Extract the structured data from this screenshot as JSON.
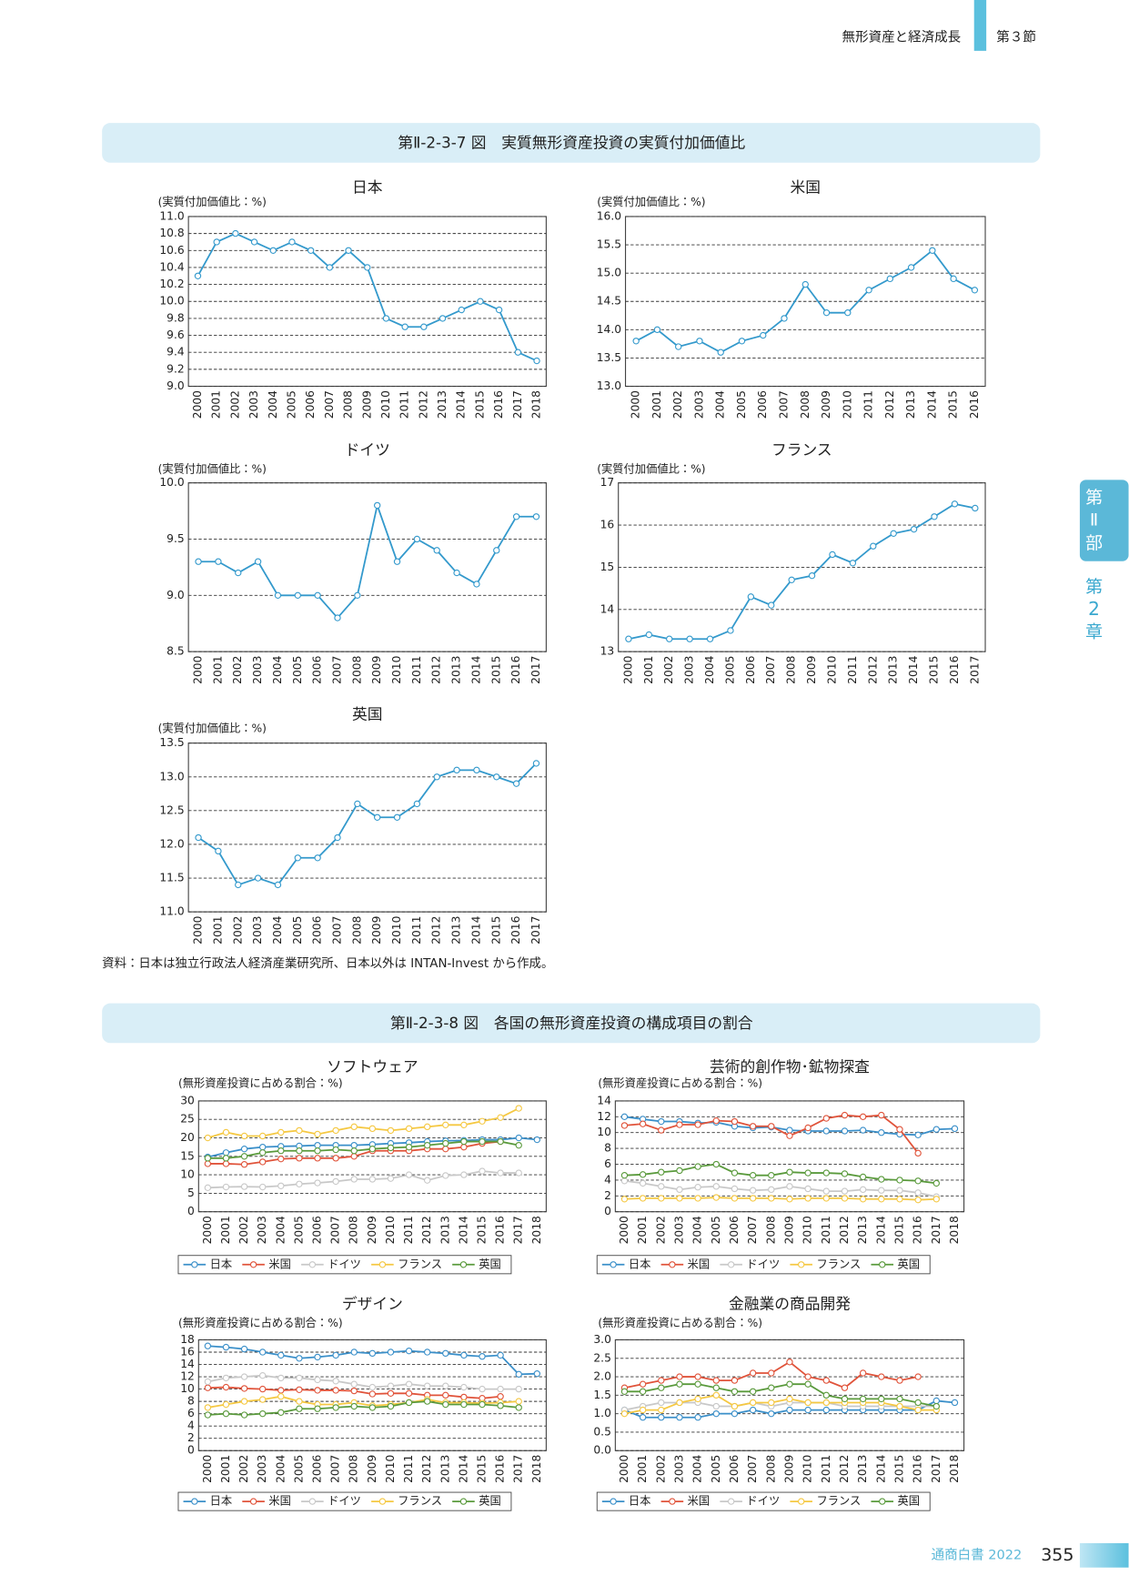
{
  "header": {
    "section_title": "無形資産と経済成長",
    "section": "第３節"
  },
  "sidebar": {
    "part": [
      "第",
      "Ⅱ",
      "部"
    ],
    "chapter": [
      "第",
      "2",
      "章"
    ]
  },
  "figures": [
    {
      "title": "第Ⅱ-2-3-7 図　実質無形資産投資の実質付加価値比",
      "note": "資料：日本は独立行政法人経済産業研究所、日本以外は INTAN-Invest から作成。"
    },
    {
      "title": "第Ⅱ-2-3-8 図　各国の無形資産投資の構成項目の割合"
    }
  ],
  "chart_data": [
    {
      "type": "line",
      "title": "日本",
      "y_label": "(実質付加価値比：%)",
      "color": "#3399cc",
      "grid": true,
      "categories": [
        "2000",
        "2001",
        "2002",
        "2003",
        "2004",
        "2005",
        "2006",
        "2007",
        "2008",
        "2009",
        "2010",
        "2011",
        "2012",
        "2013",
        "2014",
        "2015",
        "2016",
        "2017",
        "2018"
      ],
      "values": [
        10.3,
        10.7,
        10.8,
        10.7,
        10.6,
        10.7,
        10.6,
        10.4,
        10.6,
        10.4,
        9.8,
        9.7,
        9.7,
        9.8,
        9.9,
        10.0,
        9.9,
        9.4,
        9.3
      ],
      "ylim": [
        9,
        11
      ],
      "yticks": [
        {
          "value": 9,
          "label": "9.0"
        },
        9.2,
        9.4,
        9.6,
        9.8,
        {
          "value": 10,
          "label": "10.0"
        },
        10.2,
        10.4,
        10.6,
        10.8,
        {
          "value": 11,
          "label": "11.0"
        }
      ]
    },
    {
      "type": "line",
      "title": "米国",
      "y_label": "(実質付加価値比：%)",
      "color": "#3399cc",
      "grid": true,
      "categories": [
        "2000",
        "2001",
        "2002",
        "2003",
        "2004",
        "2005",
        "2006",
        "2007",
        "2008",
        "2009",
        "2010",
        "2011",
        "2012",
        "2013",
        "2014",
        "2015",
        "2016"
      ],
      "values": [
        13.8,
        14.0,
        13.7,
        13.8,
        13.6,
        13.8,
        13.9,
        14.2,
        14.8,
        14.3,
        14.3,
        14.7,
        14.9,
        15.1,
        15.4,
        14.9,
        14.7
      ],
      "ylim": [
        13,
        16
      ],
      "yticks": [
        {
          "value": 13,
          "label": "13.0"
        },
        13.5,
        {
          "value": 14,
          "label": "14.0"
        },
        14.5,
        {
          "value": 15,
          "label": "15.0"
        },
        15.5,
        {
          "value": 16,
          "label": "16.0"
        }
      ]
    },
    {
      "type": "line",
      "title": "ドイツ",
      "y_label": "(実質付加価値比：%)",
      "color": "#3399cc",
      "grid": true,
      "categories": [
        "2000",
        "2001",
        "2002",
        "2003",
        "2004",
        "2005",
        "2006",
        "2007",
        "2008",
        "2009",
        "2010",
        "2011",
        "2012",
        "2013",
        "2014",
        "2015",
        "2016",
        "2017"
      ],
      "values": [
        9.3,
        9.3,
        9.2,
        9.3,
        9.0,
        9.0,
        9.0,
        8.8,
        9.0,
        9.8,
        9.3,
        9.5,
        9.4,
        9.2,
        9.1,
        9.4,
        9.7,
        9.7
      ],
      "ylim": [
        8.5,
        10
      ],
      "yticks": [
        8.5,
        {
          "value": 9,
          "label": "9.0"
        },
        9.5,
        {
          "value": 10,
          "label": "10.0"
        }
      ]
    },
    {
      "type": "line",
      "title": "フランス",
      "y_label": "(実質付加価値比：%)",
      "color": "#3399cc",
      "grid": true,
      "categories": [
        "2000",
        "2001",
        "2002",
        "2003",
        "2004",
        "2005",
        "2006",
        "2007",
        "2008",
        "2009",
        "2010",
        "2011",
        "2012",
        "2013",
        "2014",
        "2015",
        "2016",
        "2017"
      ],
      "values": [
        13.3,
        13.4,
        13.3,
        13.3,
        13.3,
        13.5,
        14.3,
        14.1,
        14.7,
        14.8,
        15.3,
        15.1,
        15.5,
        15.8,
        15.9,
        16.2,
        16.5,
        16.4
      ],
      "ylim": [
        13,
        17
      ],
      "yticks": [
        13,
        14,
        15,
        16,
        17
      ]
    },
    {
      "type": "line",
      "title": "英国",
      "y_label": "(実質付加価値比：%)",
      "color": "#3399cc",
      "grid": true,
      "categories": [
        "2000",
        "2001",
        "2002",
        "2003",
        "2004",
        "2005",
        "2006",
        "2007",
        "2008",
        "2009",
        "2010",
        "2011",
        "2012",
        "2013",
        "2014",
        "2015",
        "2016",
        "2017"
      ],
      "values": [
        12.1,
        11.9,
        11.4,
        11.5,
        11.4,
        11.8,
        11.8,
        12.1,
        12.6,
        12.4,
        12.4,
        12.6,
        13.0,
        13.1,
        13.1,
        13.0,
        12.9,
        13.2
      ],
      "ylim": [
        11,
        13.5
      ],
      "yticks": [
        {
          "value": 11,
          "label": "11.0"
        },
        11.5,
        {
          "value": 12,
          "label": "12.0"
        },
        12.5,
        {
          "value": 13,
          "label": "13.0"
        },
        13.5
      ]
    },
    {
      "type": "line",
      "title": "ソフトウェア",
      "y_label": "(無形資産投資に占める割合：%)",
      "grid": true,
      "categories": [
        "2000",
        "2001",
        "2002",
        "2003",
        "2004",
        "2005",
        "2006",
        "2007",
        "2008",
        "2009",
        "2010",
        "2011",
        "2012",
        "2013",
        "2014",
        "2015",
        "2016",
        "2017",
        "2018"
      ],
      "series": [
        {
          "name": "日本",
          "color": "#3a8fc9",
          "values": [
            14.8,
            16,
            17,
            17.5,
            17.7,
            17.8,
            18,
            18,
            18,
            18.2,
            18.5,
            18.7,
            19,
            19.2,
            19.3,
            19.5,
            19.5,
            20,
            19.5
          ]
        },
        {
          "name": "米国",
          "color": "#e0533a",
          "values": [
            13,
            13,
            12.8,
            13.5,
            14.3,
            14.5,
            14.5,
            14.5,
            15,
            16.5,
            16.5,
            16.5,
            17,
            17,
            17.5,
            18.5,
            19,
            null,
            null
          ]
        },
        {
          "name": "ドイツ",
          "color": "#c8c8c8",
          "values": [
            6.5,
            6.7,
            6.8,
            6.7,
            7,
            7.5,
            7.8,
            8.2,
            8.8,
            8.8,
            9,
            10,
            8.5,
            9.8,
            10,
            11,
            10.5,
            10.5,
            null
          ]
        },
        {
          "name": "フランス",
          "color": "#f5c842",
          "values": [
            20,
            21.5,
            20.5,
            20.5,
            21.5,
            22,
            21,
            22,
            23,
            22.5,
            22,
            22.5,
            23,
            23.5,
            23.5,
            24.5,
            25.5,
            28,
            null
          ]
        },
        {
          "name": "英国",
          "color": "#5a9a3c",
          "values": [
            14.5,
            14.5,
            15,
            16,
            16.5,
            16.5,
            16.5,
            16.8,
            16.5,
            17,
            17.3,
            17.5,
            18,
            18.5,
            19,
            19,
            19,
            18,
            null
          ]
        }
      ],
      "ylim": [
        0,
        30
      ],
      "yticks": [
        0,
        5,
        10,
        15,
        20,
        25,
        30
      ]
    },
    {
      "type": "line",
      "title": "芸術的創作物･鉱物探査",
      "y_label": "(無形資産投資に占める割合：%)",
      "grid": true,
      "categories": [
        "2000",
        "2001",
        "2002",
        "2003",
        "2004",
        "2005",
        "2006",
        "2007",
        "2008",
        "2009",
        "2010",
        "2011",
        "2012",
        "2013",
        "2014",
        "2015",
        "2016",
        "2017",
        "2018"
      ],
      "series": [
        {
          "name": "日本",
          "color": "#3a8fc9",
          "values": [
            12,
            11.7,
            11.4,
            11.4,
            11.2,
            11.3,
            10.8,
            10.6,
            10.7,
            10.3,
            10.2,
            10.2,
            10.2,
            10.3,
            10.0,
            9.8,
            9.7,
            10.4,
            10.5
          ]
        },
        {
          "name": "米国",
          "color": "#e0533a",
          "values": [
            10.9,
            11.1,
            10.3,
            11,
            11,
            11.5,
            11.4,
            10.8,
            10.8,
            9.6,
            10.6,
            11.8,
            12.2,
            12,
            12.2,
            10.4,
            7.4,
            null,
            null
          ]
        },
        {
          "name": "ドイツ",
          "color": "#c8c8c8",
          "values": [
            3.9,
            3.6,
            3.2,
            2.8,
            3.1,
            3.2,
            2.9,
            2.7,
            2.8,
            3.2,
            2.9,
            2.6,
            2.6,
            2.8,
            2.7,
            2.7,
            2.4,
            1.9,
            null
          ]
        },
        {
          "name": "フランス",
          "color": "#f5c842",
          "values": [
            1.6,
            1.7,
            1.7,
            1.7,
            1.7,
            1.8,
            1.7,
            1.7,
            1.7,
            1.6,
            1.7,
            1.7,
            1.7,
            1.6,
            1.6,
            1.6,
            1.5,
            1.6,
            null
          ]
        },
        {
          "name": "英国",
          "color": "#5a9a3c",
          "values": [
            4.6,
            4.7,
            5,
            5.2,
            5.7,
            6,
            4.9,
            4.6,
            4.6,
            5,
            4.9,
            4.9,
            4.8,
            4.4,
            4.1,
            4,
            3.9,
            3.6,
            null
          ]
        }
      ],
      "ylim": [
        0,
        14
      ],
      "yticks": [
        0,
        2,
        4,
        6,
        8,
        10,
        12,
        14
      ]
    },
    {
      "type": "line",
      "title": "デザイン",
      "y_label": "(無形資産投資に占める割合：%)",
      "grid": true,
      "categories": [
        "2000",
        "2001",
        "2002",
        "2003",
        "2004",
        "2005",
        "2006",
        "2007",
        "2008",
        "2009",
        "2010",
        "2011",
        "2012",
        "2013",
        "2014",
        "2015",
        "2016",
        "2017",
        "2018"
      ],
      "series": [
        {
          "name": "日本",
          "color": "#3a8fc9",
          "values": [
            17,
            16.8,
            16.5,
            16,
            15.5,
            15,
            15.2,
            15.5,
            16,
            15.8,
            16,
            16.2,
            16,
            15.8,
            15.5,
            15.3,
            15.5,
            12.4,
            12.5
          ]
        },
        {
          "name": "米国",
          "color": "#e0533a",
          "values": [
            10.2,
            10.3,
            10.1,
            10,
            9.8,
            9.9,
            9.8,
            9.8,
            9.7,
            9.2,
            9.3,
            9.3,
            9,
            9,
            8.7,
            8.5,
            8.8,
            null,
            null
          ]
        },
        {
          "name": "ドイツ",
          "color": "#c8c8c8",
          "values": [
            11.2,
            11.8,
            12,
            12.2,
            11.8,
            11.8,
            11.5,
            11.3,
            10.8,
            10.3,
            10.5,
            10.8,
            10.5,
            10.5,
            10.3,
            10,
            10,
            10,
            null
          ]
        },
        {
          "name": "フランス",
          "color": "#f5c842",
          "values": [
            7,
            7.5,
            8,
            8.3,
            8.8,
            8,
            7.5,
            7.5,
            7.8,
            7.3,
            7.5,
            7.8,
            8.3,
            7.8,
            7.8,
            7.7,
            7.8,
            8,
            null
          ]
        },
        {
          "name": "英国",
          "color": "#5a9a3c",
          "values": [
            5.8,
            6,
            5.8,
            6,
            6.2,
            6.8,
            6.8,
            7,
            7.2,
            7,
            7.2,
            7.8,
            8,
            7.5,
            7.5,
            7.5,
            7.3,
            7,
            null
          ]
        }
      ],
      "ylim": [
        0,
        18
      ],
      "yticks": [
        0,
        2,
        4,
        6,
        8,
        10,
        12,
        14,
        16,
        18
      ]
    },
    {
      "type": "line",
      "title": "金融業の商品開発",
      "y_label": "(無形資産投資に占める割合：%)",
      "grid": true,
      "categories": [
        "2000",
        "2001",
        "2002",
        "2003",
        "2004",
        "2005",
        "2006",
        "2007",
        "2008",
        "2009",
        "2010",
        "2011",
        "2012",
        "2013",
        "2014",
        "2015",
        "2016",
        "2017",
        "2018"
      ],
      "series": [
        {
          "name": "日本",
          "color": "#3a8fc9",
          "values": [
            1.1,
            0.9,
            0.9,
            0.9,
            0.9,
            1.0,
            1.0,
            1.1,
            1.0,
            1.1,
            1.1,
            1.1,
            1.1,
            1.1,
            1.1,
            1.1,
            1.1,
            1.35,
            1.3
          ]
        },
        {
          "name": "米国",
          "color": "#e0533a",
          "values": [
            1.7,
            1.8,
            1.9,
            2.0,
            2.0,
            1.9,
            1.9,
            2.1,
            2.1,
            2.4,
            2.0,
            1.9,
            1.7,
            2.1,
            2.0,
            1.9,
            2.0,
            null,
            null
          ]
        },
        {
          "name": "ドイツ",
          "color": "#c8c8c8",
          "values": [
            1.1,
            1.2,
            1.3,
            1.3,
            1.3,
            1.2,
            1.2,
            1.3,
            1.2,
            1.3,
            1.3,
            1.3,
            1.2,
            1.2,
            1.2,
            1.2,
            1.2,
            1.2,
            null
          ]
        },
        {
          "name": "フランス",
          "color": "#f5c842",
          "values": [
            1.0,
            1.1,
            1.1,
            1.3,
            1.4,
            1.5,
            1.2,
            1.3,
            1.3,
            1.4,
            1.3,
            1.3,
            1.3,
            1.3,
            1.3,
            1.2,
            1.1,
            1.1,
            null
          ]
        },
        {
          "name": "英国",
          "color": "#5a9a3c",
          "values": [
            1.6,
            1.6,
            1.7,
            1.8,
            1.8,
            1.7,
            1.6,
            1.6,
            1.7,
            1.8,
            1.8,
            1.5,
            1.4,
            1.4,
            1.4,
            1.4,
            1.3,
            1.2,
            null
          ]
        }
      ],
      "ylim": [
        0,
        3
      ],
      "yticks": [
        {
          "value": 0,
          "label": "0.0"
        },
        0.5,
        {
          "value": 1,
          "label": "1.0"
        },
        1.5,
        {
          "value": 2,
          "label": "2.0"
        },
        2.5,
        {
          "value": 3,
          "label": "3.0"
        }
      ]
    }
  ],
  "footer": {
    "publication": "通商白書 2022",
    "page_number": "355"
  }
}
